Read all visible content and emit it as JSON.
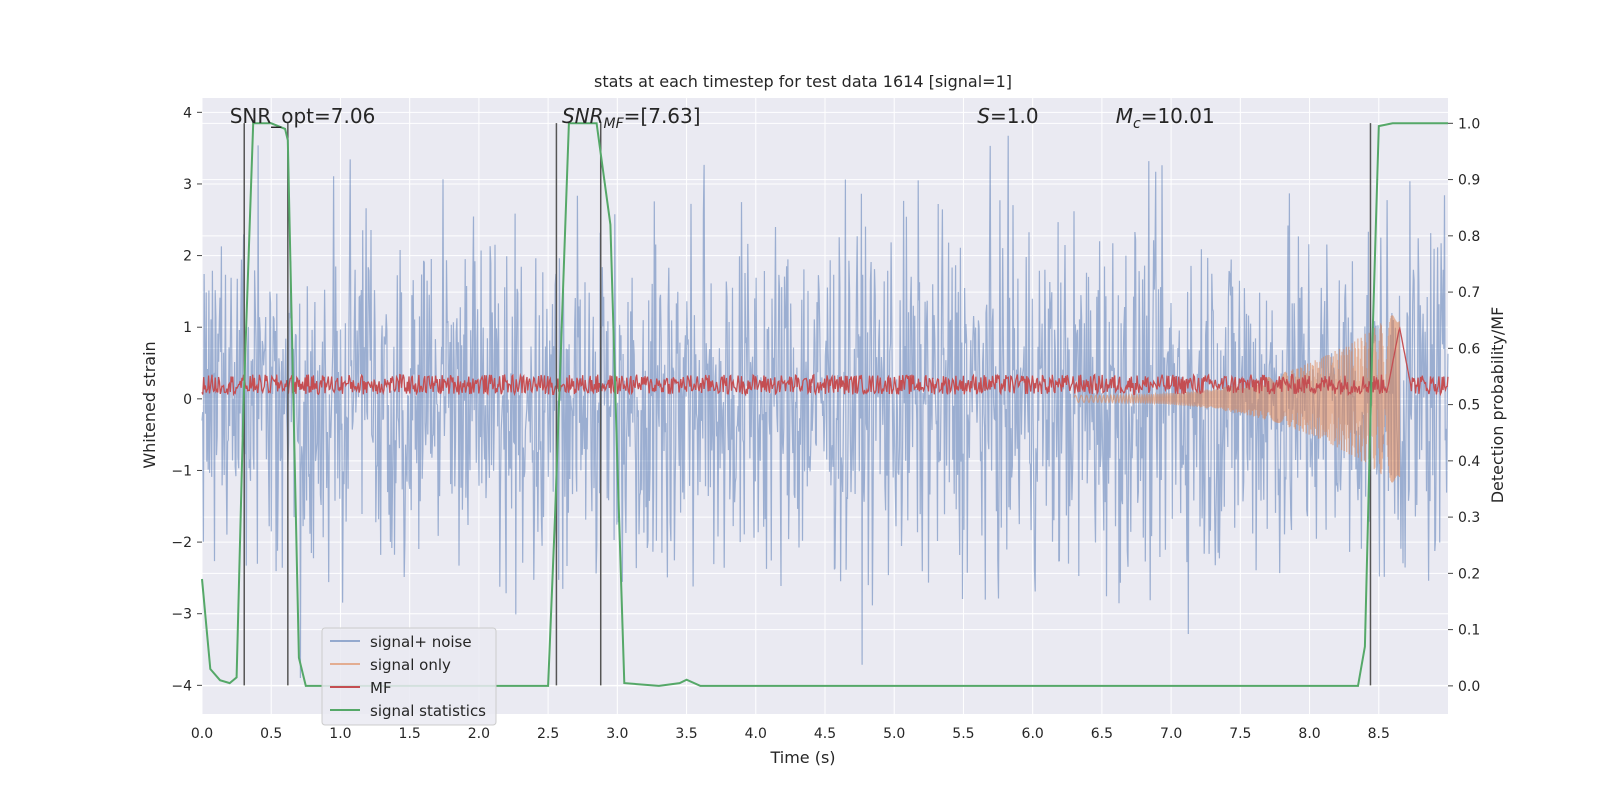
{
  "chart_data": {
    "type": "line",
    "title": "stats at each timestep for test data 1614 [signal=1]",
    "xlabel": "Time (s)",
    "ylabel": "Whitened strain",
    "y2label": "Detection probability/MF",
    "xlim": [
      0,
      9.0
    ],
    "ylim": [
      -4.4,
      4.2
    ],
    "y2lim": [
      -0.05,
      1.045
    ],
    "xticks": [
      "0.0",
      "0.5",
      "1.0",
      "1.5",
      "2.0",
      "2.5",
      "3.0",
      "3.5",
      "4.0",
      "4.5",
      "5.0",
      "5.5",
      "6.0",
      "6.5",
      "7.0",
      "7.5",
      "8.0",
      "8.5"
    ],
    "yticks": [
      "4",
      "3",
      "2",
      "1",
      "0",
      "−1",
      "−2",
      "−3",
      "−4"
    ],
    "y2ticks": [
      "1.0",
      "0.9",
      "0.8",
      "0.7",
      "0.6",
      "0.5",
      "0.4",
      "0.3",
      "0.2",
      "0.1",
      "0.0"
    ],
    "grid": true,
    "legend_position": "lower-left",
    "annotations": [
      {
        "text": "SNR_opt=7.06",
        "x": 0.2
      },
      {
        "text": "SNR_MF=[7.63]",
        "x": 2.6
      },
      {
        "text": "S=1.0",
        "x": 5.6
      },
      {
        "text": "M_c=10.01",
        "x": 6.6
      }
    ],
    "series": [
      {
        "name": "signal+ noise",
        "color": "#4c72b0",
        "kind": "noise",
        "amplitude_range": [
          -3.9,
          3.8
        ]
      },
      {
        "name": "signal only",
        "color": "#dd8452",
        "kind": "chirp",
        "peak_time": 8.65,
        "peak_amplitude": 1.2
      },
      {
        "name": "MF",
        "color": "#c44e52",
        "kind": "matched-filter",
        "baseline": 0.2,
        "peak_time": 8.65,
        "peak_value": 1.0
      },
      {
        "name": "signal statistics",
        "color": "#55a868",
        "axis": "right",
        "x": [
          0.0,
          0.06,
          0.13,
          0.2,
          0.25,
          0.3,
          0.37,
          0.5,
          0.6,
          0.62,
          0.7,
          0.75,
          0.85,
          2.0,
          2.4,
          2.5,
          2.55,
          2.65,
          2.85,
          2.95,
          3.0,
          3.05,
          3.3,
          3.45,
          3.5,
          3.6,
          8.35,
          8.4,
          8.45,
          8.5,
          8.6,
          9.0
        ],
        "y": [
          0.19,
          0.03,
          0.01,
          0.005,
          0.015,
          0.5,
          1.0,
          1.0,
          0.99,
          0.97,
          0.05,
          0.0,
          0.0,
          0.0,
          0.0,
          0.0,
          0.3,
          1.0,
          1.0,
          0.82,
          0.4,
          0.005,
          0.0,
          0.005,
          0.011,
          0.0,
          0.0,
          0.07,
          0.58,
          0.995,
          1.0,
          1.0
        ]
      }
    ],
    "vlines": [
      0.305,
      0.62,
      2.56,
      2.88,
      8.44
    ]
  }
}
